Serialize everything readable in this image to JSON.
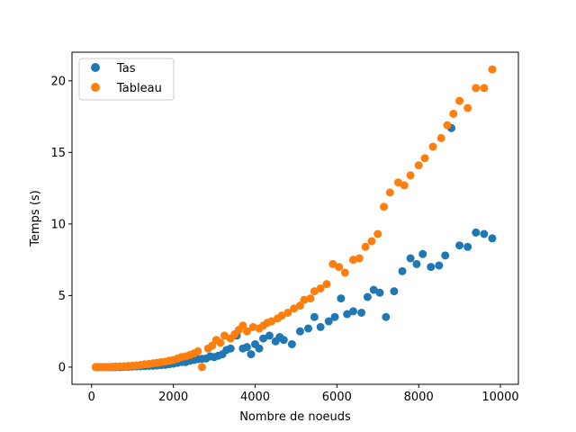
{
  "chart_data": {
    "type": "scatter",
    "xlabel": "Nombre de noeuds",
    "ylabel": "Temps (s)",
    "xlim": [
      -480,
      10440
    ],
    "ylim": [
      -1.2,
      22.0
    ],
    "xticks": [
      0,
      2000,
      4000,
      6000,
      8000,
      10000
    ],
    "yticks": [
      0,
      5,
      10,
      15,
      20
    ],
    "grid": false,
    "legend": "top-left",
    "series": [
      {
        "name": "Tas",
        "color": "#1f77b4",
        "points": [
          [
            100,
            0.0
          ],
          [
            150,
            0.0
          ],
          [
            200,
            0.0
          ],
          [
            250,
            0.0
          ],
          [
            300,
            0.0
          ],
          [
            350,
            0.0
          ],
          [
            400,
            0.0
          ],
          [
            450,
            0.0
          ],
          [
            500,
            0.0
          ],
          [
            550,
            0.0
          ],
          [
            600,
            0.0
          ],
          [
            700,
            0.0
          ],
          [
            800,
            0.02
          ],
          [
            900,
            0.03
          ],
          [
            1000,
            0.04
          ],
          [
            1100,
            0.05
          ],
          [
            1200,
            0.06
          ],
          [
            1300,
            0.07
          ],
          [
            1400,
            0.09
          ],
          [
            1500,
            0.1
          ],
          [
            1600,
            0.12
          ],
          [
            1700,
            0.14
          ],
          [
            1800,
            0.16
          ],
          [
            1900,
            0.2
          ],
          [
            2000,
            0.24
          ],
          [
            2100,
            0.3
          ],
          [
            2200,
            0.36
          ],
          [
            2300,
            0.35
          ],
          [
            2400,
            0.45
          ],
          [
            2500,
            0.5
          ],
          [
            2600,
            0.55
          ],
          [
            2700,
            0.58
          ],
          [
            2800,
            0.6
          ],
          [
            2900,
            0.75
          ],
          [
            3000,
            0.7
          ],
          [
            3100,
            0.8
          ],
          [
            3200,
            0.9
          ],
          [
            3300,
            1.2
          ],
          [
            3400,
            1.3
          ],
          [
            3550,
            2.2
          ],
          [
            3700,
            1.3
          ],
          [
            3800,
            1.4
          ],
          [
            3900,
            0.9
          ],
          [
            4000,
            1.6
          ],
          [
            4100,
            1.3
          ],
          [
            4200,
            2.0
          ],
          [
            4350,
            2.2
          ],
          [
            4500,
            1.8
          ],
          [
            4600,
            2.1
          ],
          [
            4700,
            1.9
          ],
          [
            4900,
            1.6
          ],
          [
            5100,
            2.5
          ],
          [
            5300,
            2.7
          ],
          [
            5450,
            3.5
          ],
          [
            5600,
            2.8
          ],
          [
            5800,
            3.2
          ],
          [
            5950,
            3.5
          ],
          [
            6100,
            4.8
          ],
          [
            6250,
            3.7
          ],
          [
            6400,
            3.9
          ],
          [
            6600,
            3.8
          ],
          [
            6750,
            4.9
          ],
          [
            6900,
            5.4
          ],
          [
            7050,
            5.2
          ],
          [
            7200,
            3.5
          ],
          [
            7400,
            5.3
          ],
          [
            7600,
            6.7
          ],
          [
            7800,
            7.6
          ],
          [
            7950,
            7.2
          ],
          [
            8100,
            7.9
          ],
          [
            8300,
            7.0
          ],
          [
            8500,
            7.1
          ],
          [
            8650,
            7.8
          ],
          [
            8800,
            16.7
          ],
          [
            9000,
            8.5
          ],
          [
            9200,
            8.4
          ],
          [
            9400,
            9.4
          ],
          [
            9600,
            9.3
          ],
          [
            9800,
            9.0
          ]
        ]
      },
      {
        "name": "Tableau",
        "color": "#ff7f0e",
        "points": [
          [
            100,
            0.0
          ],
          [
            150,
            0.0
          ],
          [
            200,
            0.0
          ],
          [
            250,
            0.0
          ],
          [
            300,
            0.0
          ],
          [
            350,
            0.0
          ],
          [
            400,
            0.0
          ],
          [
            450,
            0.0
          ],
          [
            500,
            0.02
          ],
          [
            550,
            0.03
          ],
          [
            600,
            0.04
          ],
          [
            700,
            0.05
          ],
          [
            800,
            0.06
          ],
          [
            900,
            0.08
          ],
          [
            1000,
            0.1
          ],
          [
            1100,
            0.12
          ],
          [
            1200,
            0.15
          ],
          [
            1300,
            0.2
          ],
          [
            1400,
            0.22
          ],
          [
            1500,
            0.26
          ],
          [
            1600,
            0.3
          ],
          [
            1700,
            0.35
          ],
          [
            1800,
            0.38
          ],
          [
            1900,
            0.45
          ],
          [
            2000,
            0.5
          ],
          [
            2100,
            0.6
          ],
          [
            2200,
            0.7
          ],
          [
            2300,
            0.75
          ],
          [
            2400,
            0.85
          ],
          [
            2500,
            0.95
          ],
          [
            2600,
            1.1
          ],
          [
            2700,
            0.0
          ],
          [
            2850,
            1.3
          ],
          [
            2950,
            1.5
          ],
          [
            3050,
            1.9
          ],
          [
            3150,
            1.7
          ],
          [
            3250,
            2.2
          ],
          [
            3400,
            2.0
          ],
          [
            3500,
            2.3
          ],
          [
            3600,
            2.6
          ],
          [
            3700,
            2.9
          ],
          [
            3800,
            2.5
          ],
          [
            3950,
            2.8
          ],
          [
            4100,
            2.7
          ],
          [
            4200,
            2.9
          ],
          [
            4300,
            3.1
          ],
          [
            4400,
            3.2
          ],
          [
            4550,
            3.4
          ],
          [
            4650,
            3.6
          ],
          [
            4800,
            3.8
          ],
          [
            4950,
            4.1
          ],
          [
            5100,
            4.3
          ],
          [
            5200,
            4.7
          ],
          [
            5350,
            4.8
          ],
          [
            5450,
            5.3
          ],
          [
            5600,
            5.5
          ],
          [
            5750,
            5.8
          ],
          [
            5900,
            7.2
          ],
          [
            6050,
            7.0
          ],
          [
            6200,
            6.6
          ],
          [
            6400,
            7.5
          ],
          [
            6550,
            7.6
          ],
          [
            6700,
            8.4
          ],
          [
            6850,
            8.8
          ],
          [
            7000,
            9.3
          ],
          [
            7150,
            11.2
          ],
          [
            7300,
            12.2
          ],
          [
            7500,
            12.9
          ],
          [
            7650,
            12.7
          ],
          [
            7800,
            13.4
          ],
          [
            8000,
            14.1
          ],
          [
            8150,
            14.6
          ],
          [
            8350,
            15.4
          ],
          [
            8550,
            16.0
          ],
          [
            8700,
            16.9
          ],
          [
            8850,
            17.7
          ],
          [
            9000,
            18.6
          ],
          [
            9200,
            18.1
          ],
          [
            9400,
            19.5
          ],
          [
            9600,
            19.5
          ],
          [
            9800,
            20.8
          ]
        ]
      }
    ]
  }
}
